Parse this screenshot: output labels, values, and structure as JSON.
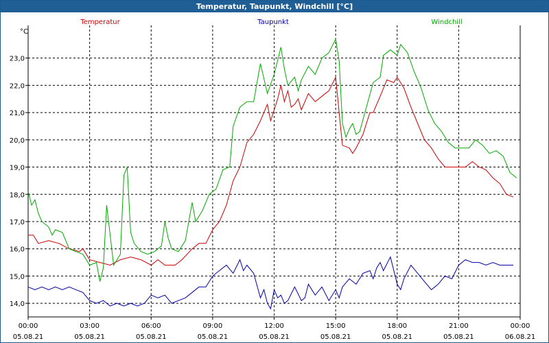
{
  "window": {
    "title": "Temperatur, Taupunkt, Windchill [°C]"
  },
  "chart_data": {
    "type": "line",
    "title": "Temperatur, Taupunkt, Windchill [°C]",
    "ylabel": "°C",
    "ylim": [
      13.5,
      24.2
    ],
    "xlim_hours": [
      0,
      24
    ],
    "grid": true,
    "legend_placement": "top",
    "yticks": [
      "14,0",
      "15,0",
      "16,0",
      "17,0",
      "18,0",
      "19,0",
      "20,0",
      "21,0",
      "22,0",
      "23,0"
    ],
    "xticks": [
      {
        "time": "00:00",
        "date": "05.08.21"
      },
      {
        "time": "03:00",
        "date": "05.08.21"
      },
      {
        "time": "06:00",
        "date": "05.08.21"
      },
      {
        "time": "09:00",
        "date": "05.08.21"
      },
      {
        "time": "12:00",
        "date": "05.08.21"
      },
      {
        "time": "15:00",
        "date": "05.08.21"
      },
      {
        "time": "18:00",
        "date": "05.08.21"
      },
      {
        "time": "21:00",
        "date": "05.08.21"
      },
      {
        "time": "00:00",
        "date": "06.08.21"
      }
    ],
    "series": [
      {
        "name": "Temperatur",
        "color": "#cc0000",
        "points": [
          [
            0,
            16.5
          ],
          [
            0.25,
            16.5
          ],
          [
            0.5,
            16.2
          ],
          [
            1,
            16.3
          ],
          [
            1.5,
            16.2
          ],
          [
            2,
            16.0
          ],
          [
            2.5,
            15.9
          ],
          [
            2.67,
            16.0
          ],
          [
            3,
            15.6
          ],
          [
            3.5,
            15.5
          ],
          [
            4,
            15.4
          ],
          [
            4.5,
            15.6
          ],
          [
            5,
            15.7
          ],
          [
            5.5,
            15.6
          ],
          [
            6,
            15.4
          ],
          [
            6.33,
            15.6
          ],
          [
            6.67,
            15.4
          ],
          [
            7.17,
            15.4
          ],
          [
            7.5,
            15.6
          ],
          [
            8,
            16.0
          ],
          [
            8.33,
            16.2
          ],
          [
            8.67,
            16.2
          ],
          [
            9,
            16.7
          ],
          [
            9.33,
            17.0
          ],
          [
            9.67,
            17.6
          ],
          [
            10,
            18.5
          ],
          [
            10.33,
            19.0
          ],
          [
            10.67,
            19.9
          ],
          [
            11,
            20.2
          ],
          [
            11.33,
            20.7
          ],
          [
            11.67,
            21.3
          ],
          [
            11.83,
            20.7
          ],
          [
            12,
            21.1
          ],
          [
            12.17,
            21.5
          ],
          [
            12.33,
            22.0
          ],
          [
            12.5,
            21.4
          ],
          [
            12.67,
            21.8
          ],
          [
            12.83,
            21.2
          ],
          [
            13,
            21.3
          ],
          [
            13.17,
            21.5
          ],
          [
            13.33,
            21.1
          ],
          [
            13.67,
            21.7
          ],
          [
            14,
            21.4
          ],
          [
            14.33,
            21.6
          ],
          [
            14.67,
            21.8
          ],
          [
            15,
            22.3
          ],
          [
            15.17,
            21.0
          ],
          [
            15.33,
            19.8
          ],
          [
            15.67,
            19.7
          ],
          [
            15.83,
            19.5
          ],
          [
            16,
            19.7
          ],
          [
            16.33,
            20.2
          ],
          [
            16.67,
            21.0
          ],
          [
            16.83,
            21.0
          ],
          [
            17.17,
            21.6
          ],
          [
            17.5,
            22.2
          ],
          [
            17.83,
            22.1
          ],
          [
            18,
            22.3
          ],
          [
            18.33,
            21.9
          ],
          [
            18.67,
            21.2
          ],
          [
            19,
            20.6
          ],
          [
            19.33,
            20.0
          ],
          [
            19.67,
            19.7
          ],
          [
            20,
            19.3
          ],
          [
            20.33,
            19.0
          ],
          [
            20.67,
            19.0
          ],
          [
            21,
            19.0
          ],
          [
            21.33,
            19.0
          ],
          [
            21.67,
            19.2
          ],
          [
            22,
            19.0
          ],
          [
            22.33,
            18.9
          ],
          [
            22.67,
            18.6
          ],
          [
            23,
            18.4
          ],
          [
            23.33,
            18.0
          ],
          [
            23.67,
            17.9
          ]
        ]
      },
      {
        "name": "Taupunkt",
        "color": "#0000aa",
        "points": [
          [
            0,
            14.6
          ],
          [
            0.33,
            14.5
          ],
          [
            0.67,
            14.6
          ],
          [
            1,
            14.5
          ],
          [
            1.33,
            14.6
          ],
          [
            1.67,
            14.5
          ],
          [
            2,
            14.6
          ],
          [
            2.33,
            14.5
          ],
          [
            2.67,
            14.4
          ],
          [
            3,
            14.1
          ],
          [
            3.33,
            14.0
          ],
          [
            3.67,
            14.1
          ],
          [
            4,
            13.9
          ],
          [
            4.33,
            14.0
          ],
          [
            4.67,
            13.9
          ],
          [
            5,
            14.0
          ],
          [
            5.33,
            13.9
          ],
          [
            5.67,
            14.0
          ],
          [
            6,
            14.3
          ],
          [
            6.33,
            14.2
          ],
          [
            6.67,
            14.3
          ],
          [
            7,
            14.0
          ],
          [
            7.33,
            14.1
          ],
          [
            7.67,
            14.2
          ],
          [
            8,
            14.4
          ],
          [
            8.33,
            14.6
          ],
          [
            8.67,
            14.6
          ],
          [
            9,
            15.0
          ],
          [
            9.33,
            15.2
          ],
          [
            9.67,
            15.4
          ],
          [
            10,
            15.1
          ],
          [
            10.33,
            15.6
          ],
          [
            10.5,
            15.2
          ],
          [
            10.67,
            15.4
          ],
          [
            11,
            15.1
          ],
          [
            11.33,
            14.2
          ],
          [
            11.5,
            14.5
          ],
          [
            11.67,
            14.0
          ],
          [
            11.83,
            13.8
          ],
          [
            12,
            14.5
          ],
          [
            12.17,
            14.2
          ],
          [
            12.33,
            14.3
          ],
          [
            12.5,
            14.0
          ],
          [
            12.67,
            14.1
          ],
          [
            13,
            14.6
          ],
          [
            13.33,
            14.1
          ],
          [
            13.5,
            14.2
          ],
          [
            13.67,
            14.7
          ],
          [
            14,
            14.3
          ],
          [
            14.33,
            14.6
          ],
          [
            14.67,
            14.1
          ],
          [
            15,
            14.5
          ],
          [
            15.17,
            14.2
          ],
          [
            15.33,
            14.6
          ],
          [
            15.67,
            14.9
          ],
          [
            16,
            14.7
          ],
          [
            16.33,
            15.1
          ],
          [
            16.67,
            15.2
          ],
          [
            16.83,
            14.9
          ],
          [
            17,
            15.3
          ],
          [
            17.17,
            15.5
          ],
          [
            17.33,
            15.2
          ],
          [
            17.67,
            15.7
          ],
          [
            18,
            14.7
          ],
          [
            18.17,
            14.5
          ],
          [
            18.33,
            14.9
          ],
          [
            18.67,
            15.4
          ],
          [
            19,
            15.1
          ],
          [
            19.33,
            14.8
          ],
          [
            19.67,
            14.5
          ],
          [
            20,
            14.7
          ],
          [
            20.33,
            15.0
          ],
          [
            20.67,
            14.9
          ],
          [
            21,
            15.4
          ],
          [
            21.33,
            15.6
          ],
          [
            21.67,
            15.5
          ],
          [
            22,
            15.5
          ],
          [
            22.33,
            15.4
          ],
          [
            22.67,
            15.5
          ],
          [
            23,
            15.4
          ],
          [
            23.33,
            15.4
          ],
          [
            23.67,
            15.4
          ]
        ]
      },
      {
        "name": "Windchill",
        "color": "#00aa00",
        "points": [
          [
            0,
            18.1
          ],
          [
            0.17,
            17.6
          ],
          [
            0.33,
            17.8
          ],
          [
            0.5,
            17.3
          ],
          [
            0.67,
            17.0
          ],
          [
            1,
            16.8
          ],
          [
            1.17,
            16.5
          ],
          [
            1.33,
            16.7
          ],
          [
            1.67,
            16.6
          ],
          [
            2,
            16.0
          ],
          [
            2.33,
            15.9
          ],
          [
            2.67,
            15.8
          ],
          [
            3,
            15.4
          ],
          [
            3.33,
            15.5
          ],
          [
            3.5,
            14.8
          ],
          [
            3.67,
            15.3
          ],
          [
            3.83,
            17.6
          ],
          [
            4.17,
            15.4
          ],
          [
            4.5,
            15.8
          ],
          [
            4.67,
            18.7
          ],
          [
            4.83,
            19.0
          ],
          [
            5,
            16.6
          ],
          [
            5.17,
            16.2
          ],
          [
            5.5,
            15.9
          ],
          [
            5.83,
            15.8
          ],
          [
            6.17,
            15.9
          ],
          [
            6.5,
            16.1
          ],
          [
            6.67,
            17.0
          ],
          [
            6.83,
            16.4
          ],
          [
            7,
            16.0
          ],
          [
            7.33,
            15.9
          ],
          [
            7.67,
            16.3
          ],
          [
            8,
            17.7
          ],
          [
            8.17,
            17.0
          ],
          [
            8.5,
            17.4
          ],
          [
            8.83,
            18.0
          ],
          [
            9.17,
            18.2
          ],
          [
            9.5,
            18.9
          ],
          [
            9.83,
            19.0
          ],
          [
            10,
            20.5
          ],
          [
            10.33,
            21.2
          ],
          [
            10.67,
            21.4
          ],
          [
            11,
            21.4
          ],
          [
            11.33,
            22.8
          ],
          [
            11.67,
            21.7
          ],
          [
            12,
            22.4
          ],
          [
            12.33,
            23.4
          ],
          [
            12.5,
            22.6
          ],
          [
            12.67,
            22.0
          ],
          [
            13,
            22.3
          ],
          [
            13.17,
            21.8
          ],
          [
            13.33,
            22.2
          ],
          [
            13.67,
            22.7
          ],
          [
            14,
            22.4
          ],
          [
            14.33,
            23.0
          ],
          [
            14.67,
            23.2
          ],
          [
            15,
            23.7
          ],
          [
            15.17,
            22.9
          ],
          [
            15.33,
            20.6
          ],
          [
            15.5,
            20.1
          ],
          [
            15.67,
            20.4
          ],
          [
            15.83,
            20.6
          ],
          [
            16,
            20.2
          ],
          [
            16.17,
            20.3
          ],
          [
            16.5,
            21.2
          ],
          [
            16.83,
            22.1
          ],
          [
            17.17,
            22.3
          ],
          [
            17.33,
            23.1
          ],
          [
            17.67,
            23.3
          ],
          [
            18,
            23.1
          ],
          [
            18.17,
            23.5
          ],
          [
            18.5,
            23.2
          ],
          [
            18.83,
            22.5
          ],
          [
            19.17,
            21.9
          ],
          [
            19.5,
            21.1
          ],
          [
            19.83,
            20.6
          ],
          [
            20.17,
            20.3
          ],
          [
            20.5,
            19.9
          ],
          [
            20.83,
            19.7
          ],
          [
            21.17,
            19.7
          ],
          [
            21.5,
            19.7
          ],
          [
            21.83,
            20.0
          ],
          [
            22.17,
            19.8
          ],
          [
            22.5,
            19.5
          ],
          [
            22.83,
            19.6
          ],
          [
            23.17,
            19.4
          ],
          [
            23.5,
            18.8
          ],
          [
            23.83,
            18.6
          ]
        ]
      }
    ]
  }
}
